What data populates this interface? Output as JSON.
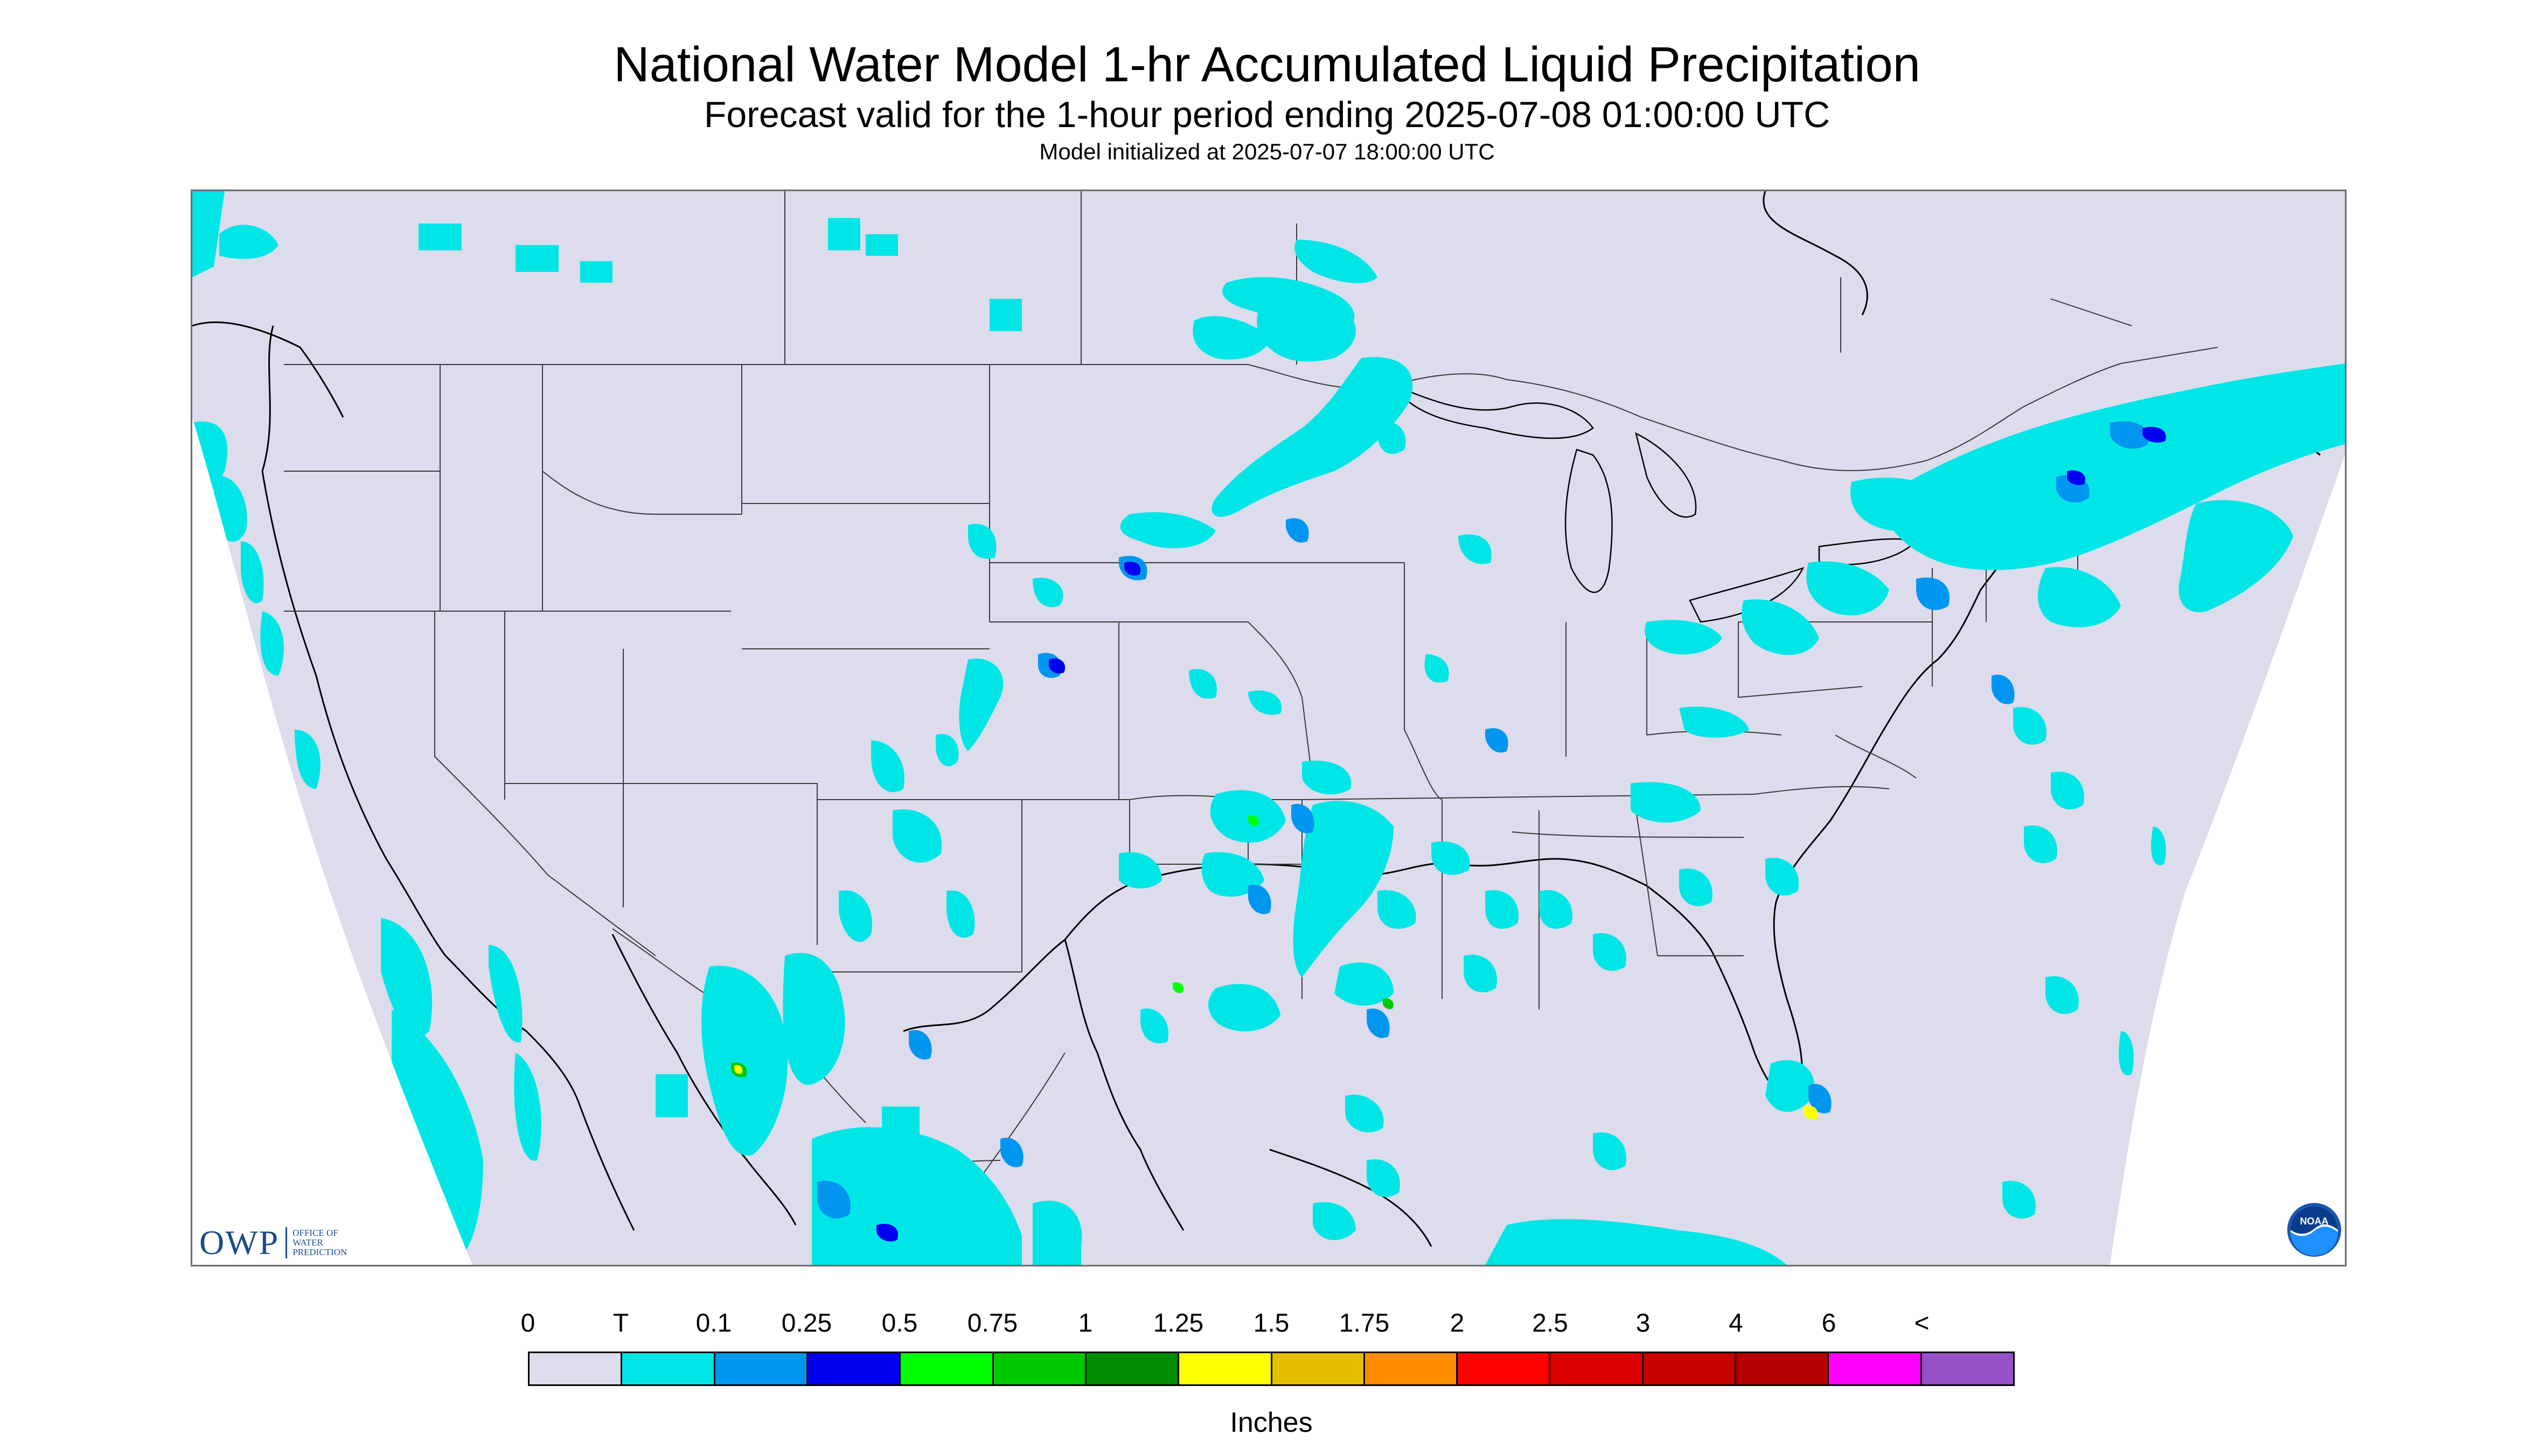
{
  "title": "National Water Model 1-hr Accumulated Liquid Precipitation",
  "subtitle": "Forecast valid for the 1-hour period ending 2025-07-08 01:00:00 UTC",
  "init_line": "Model initialized at 2025-07-07 18:00:00 UTC",
  "logos": {
    "owp": {
      "letters": "OWP",
      "line1": "OFFICE OF",
      "line2": "WATER",
      "line3": "PREDICTION"
    },
    "noaa": {
      "text": "NOAA",
      "icon": "noaa-logo-icon"
    }
  },
  "colors": {
    "map_background": "#dcdcec",
    "precip_light": "#00e6e6",
    "precip_medium": "#0096f0",
    "precip_heavy": "#0000ee",
    "precip_green": "#00c800",
    "precip_yellow": "#ffff00",
    "boundary_line": "#3a3a3a",
    "coastline": "#000000"
  },
  "legend": {
    "labels": [
      "0",
      "T",
      "0.1",
      "0.25",
      "0.5",
      "0.75",
      "1",
      "1.25",
      "1.5",
      "1.75",
      "2",
      "2.5",
      "3",
      "4",
      "6",
      "<"
    ],
    "colors": [
      "#dcdcec",
      "#00e6e6",
      "#0096f0",
      "#0000f0",
      "#00ff00",
      "#00c800",
      "#008c00",
      "#ffff00",
      "#e6be00",
      "#ff8c00",
      "#ff0000",
      "#dc0000",
      "#c80000",
      "#b40000",
      "#ff00ff",
      "#9650c8"
    ],
    "units": "Inches"
  }
}
